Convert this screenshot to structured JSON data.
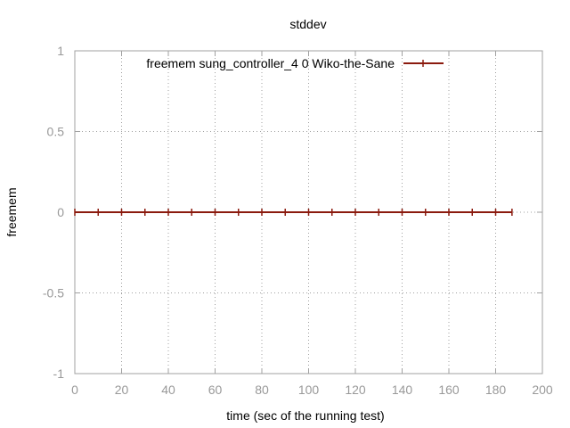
{
  "chart_data": {
    "type": "line",
    "title": "stddev",
    "xlabel": "time (sec of the running test)",
    "ylabel": "freemem",
    "xlim": [
      0,
      200
    ],
    "ylim": [
      -1,
      1
    ],
    "xticks": [
      0,
      20,
      40,
      60,
      80,
      100,
      120,
      140,
      160,
      180,
      200
    ],
    "yticks": [
      1,
      0.5,
      0,
      -0.5,
      -1
    ],
    "xtick_labels": [
      "0",
      "20",
      "40",
      "60",
      "80",
      "100",
      "120",
      "140",
      "160",
      "180",
      "200"
    ],
    "ytick_labels": [
      "1",
      "0.5",
      "0",
      "-0.5",
      "-1"
    ],
    "grid": true,
    "legend_position": "top-right",
    "series": [
      {
        "name": "freemem sung_controller_4 0 Wiko-the-Sane",
        "color": "#8b1a0e",
        "x": [
          0,
          10,
          20,
          30,
          40,
          50,
          60,
          70,
          80,
          90,
          100,
          110,
          120,
          130,
          140,
          150,
          160,
          170,
          180,
          187
        ],
        "y": [
          0,
          0,
          0,
          0,
          0,
          0,
          0,
          0,
          0,
          0,
          0,
          0,
          0,
          0,
          0,
          0,
          0,
          0,
          0,
          0
        ]
      }
    ]
  }
}
